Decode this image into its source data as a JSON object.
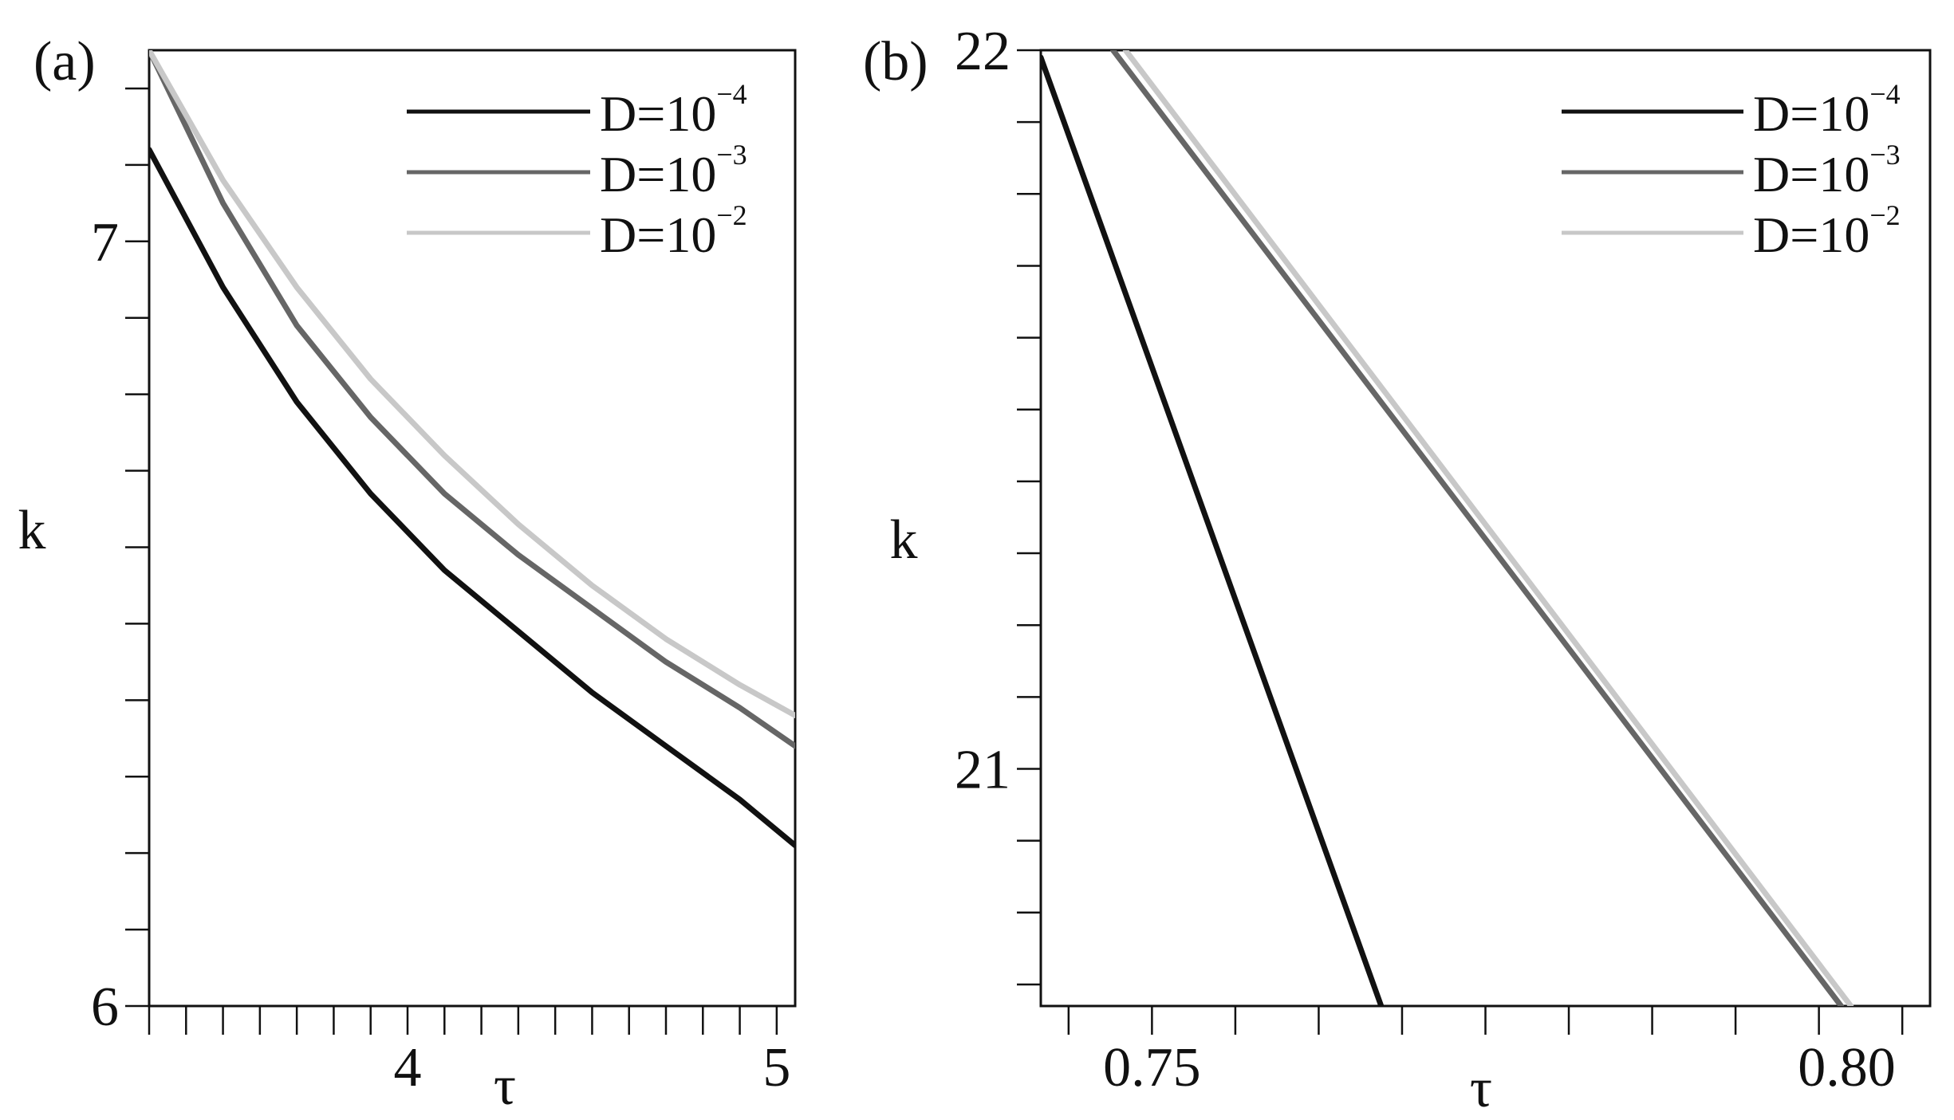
{
  "chart_data": [
    {
      "panel_label": "(a)",
      "type": "line",
      "xlabel": "τ",
      "ylabel": "k",
      "xlim": [
        3.3,
        5.05
      ],
      "ylim": [
        6.0,
        7.25
      ],
      "x_tick_labels": [
        {
          "value": 4,
          "label": "4"
        },
        {
          "value": 5,
          "label": "5"
        }
      ],
      "x_minor_ticks": [
        3.3,
        3.4,
        3.5,
        3.6,
        3.7,
        3.8,
        3.9,
        4.0,
        4.1,
        4.2,
        4.3,
        4.4,
        4.5,
        4.6,
        4.7,
        4.8,
        4.9,
        5.0
      ],
      "y_tick_labels": [
        {
          "value": 6,
          "label": "6"
        },
        {
          "value": 7,
          "label": "7"
        }
      ],
      "y_minor_ticks": [
        6.0,
        6.1,
        6.2,
        6.3,
        6.4,
        6.5,
        6.6,
        6.7,
        6.8,
        6.9,
        7.0,
        7.1,
        7.2
      ],
      "legend": "top-right",
      "grid": false,
      "series": [
        {
          "name": "D=10",
          "exponent": "−4",
          "color": "#111111",
          "x": [
            3.3,
            3.5,
            3.7,
            3.9,
            4.1,
            4.3,
            4.5,
            4.7,
            4.9,
            5.05
          ],
          "y": [
            7.12,
            6.94,
            6.79,
            6.67,
            6.57,
            6.49,
            6.41,
            6.34,
            6.27,
            6.21
          ]
        },
        {
          "name": "D=10",
          "exponent": "−3",
          "color": "#666666",
          "x": [
            3.3,
            3.5,
            3.7,
            3.9,
            4.1,
            4.3,
            4.5,
            4.7,
            4.9,
            5.05
          ],
          "y": [
            7.25,
            7.05,
            6.89,
            6.77,
            6.67,
            6.59,
            6.52,
            6.45,
            6.39,
            6.34
          ]
        },
        {
          "name": "D=10",
          "exponent": "−2",
          "color": "#c8c8c8",
          "x": [
            3.3,
            3.5,
            3.7,
            3.9,
            4.1,
            4.3,
            4.5,
            4.7,
            4.9,
            5.05
          ],
          "y": [
            7.25,
            7.08,
            6.94,
            6.82,
            6.72,
            6.63,
            6.55,
            6.48,
            6.42,
            6.38
          ]
        }
      ]
    },
    {
      "panel_label": "(b)",
      "type": "line",
      "xlabel": "τ",
      "ylabel": "k",
      "xlim": [
        0.742,
        0.806
      ],
      "ylim": [
        20.67,
        22.0
      ],
      "x_tick_labels": [
        {
          "value": 0.75,
          "label": "0.75"
        },
        {
          "value": 0.8,
          "label": "0.80"
        }
      ],
      "x_minor_ticks": [
        0.744,
        0.75,
        0.756,
        0.762,
        0.768,
        0.774,
        0.78,
        0.786,
        0.792,
        0.798,
        0.804
      ],
      "y_tick_labels": [
        {
          "value": 21,
          "label": "21"
        },
        {
          "value": 22,
          "label": "22"
        }
      ],
      "y_minor_ticks": [
        20.7,
        20.8,
        20.9,
        21.0,
        21.1,
        21.2,
        21.3,
        21.4,
        21.5,
        21.6,
        21.7,
        21.8,
        21.9,
        22.0
      ],
      "legend": "top-right",
      "grid": false,
      "series": [
        {
          "name": "D=10",
          "exponent": "−4",
          "color": "#111111",
          "x": [
            0.742,
            0.7665
          ],
          "y": [
            21.99,
            20.67
          ]
        },
        {
          "name": "D=10",
          "exponent": "−3",
          "color": "#666666",
          "x": [
            0.7472,
            0.7996
          ],
          "y": [
            22.0,
            20.67
          ]
        },
        {
          "name": "D=10",
          "exponent": "−2",
          "color": "#c8c8c8",
          "x": [
            0.7481,
            0.8003
          ],
          "y": [
            22.0,
            20.67
          ]
        }
      ]
    }
  ]
}
